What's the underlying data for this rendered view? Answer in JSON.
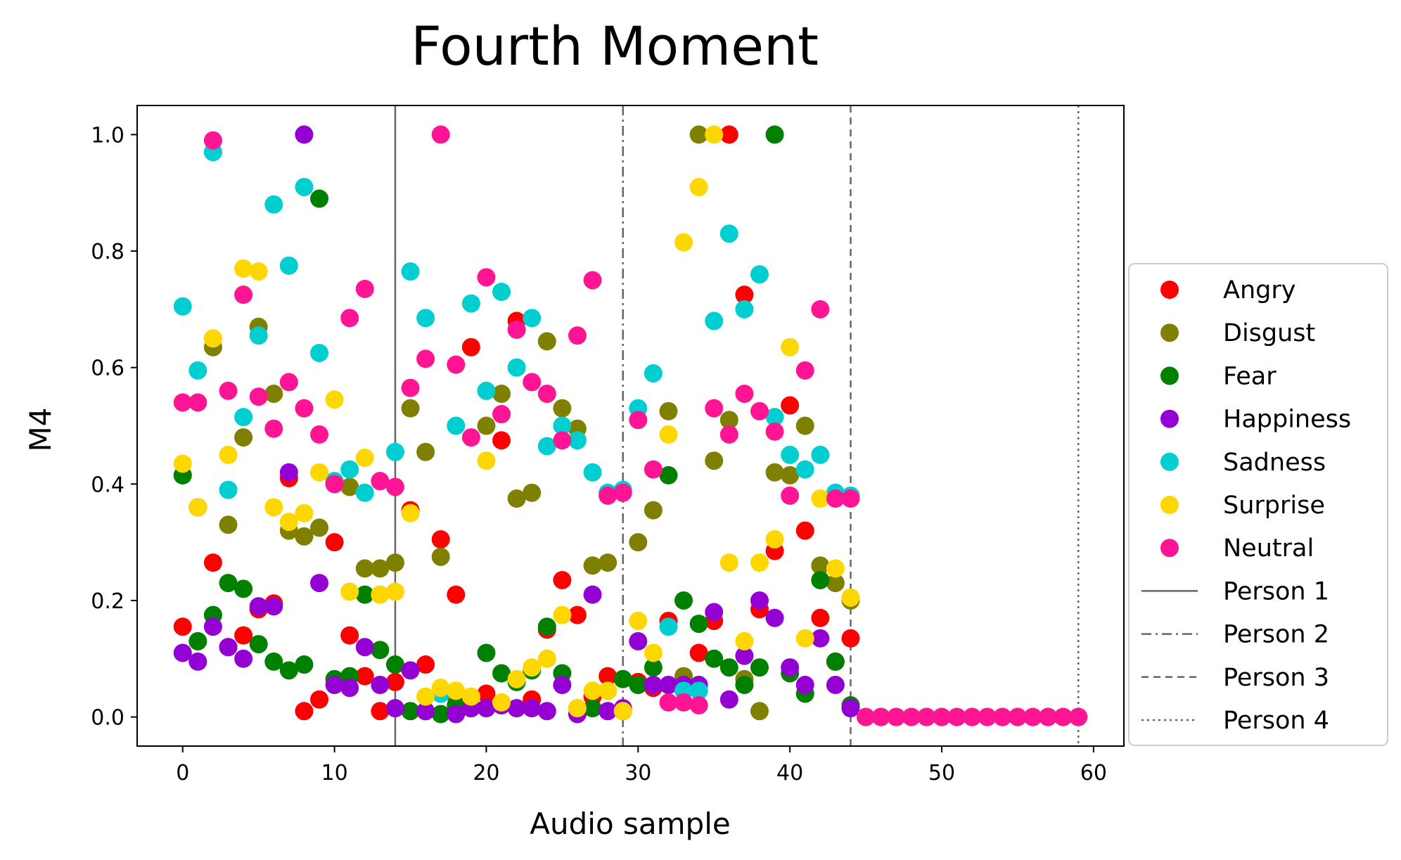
{
  "chart_data": {
    "type": "scatter",
    "title": "Fourth Moment",
    "xlabel": "Audio sample",
    "ylabel": "M4",
    "xlim": [
      -3,
      62
    ],
    "ylim": [
      -0.05,
      1.05
    ],
    "xticks": [
      "0",
      "10",
      "20",
      "30",
      "40",
      "50",
      "60"
    ],
    "yticks": [
      "0.0",
      "0.2",
      "0.4",
      "0.6",
      "0.8",
      "1.0"
    ],
    "grid": false,
    "legend_position": "center-right outside",
    "series": [
      {
        "name": "Angry",
        "color": "#ff0000",
        "x": [
          0,
          1,
          2,
          3,
          4,
          5,
          6,
          7,
          8,
          9,
          10,
          11,
          12,
          13,
          14,
          15,
          16,
          17,
          18,
          19,
          20,
          21,
          22,
          23,
          24,
          25,
          26,
          27,
          28,
          29,
          30,
          31,
          32,
          33,
          34,
          35,
          36,
          37,
          38,
          39,
          40,
          41,
          42,
          43,
          44,
          45,
          46,
          47,
          48,
          49,
          50,
          51,
          52,
          53,
          54,
          55,
          56,
          57,
          58,
          59
        ],
        "y": [
          0.155,
          0.36,
          0.265,
          0.12,
          0.14,
          0.185,
          0.195,
          0.41,
          0.01,
          0.03,
          0.3,
          0.14,
          0.07,
          0.01,
          0.06,
          0.355,
          0.09,
          0.305,
          0.21,
          0.635,
          0.04,
          0.475,
          0.68,
          0.03,
          0.15,
          0.235,
          0.175,
          0.035,
          0.07,
          0.01,
          0.06,
          0.05,
          0.165,
          0.06,
          0.11,
          0.165,
          1.0,
          0.725,
          0.185,
          0.285,
          0.535,
          0.32,
          0.17,
          0.095,
          0.135,
          0,
          0,
          0,
          0,
          0,
          0,
          0,
          0,
          0,
          0,
          0,
          0,
          0,
          0,
          0
        ]
      },
      {
        "name": "Disgust",
        "color": "#808000",
        "x": [
          0,
          1,
          2,
          3,
          4,
          5,
          6,
          7,
          8,
          9,
          10,
          11,
          12,
          13,
          14,
          15,
          16,
          17,
          18,
          19,
          20,
          21,
          22,
          23,
          24,
          25,
          26,
          27,
          28,
          29,
          30,
          31,
          32,
          33,
          34,
          35,
          36,
          37,
          38,
          39,
          40,
          41,
          42,
          43,
          44,
          45,
          46,
          47,
          48,
          49,
          50,
          51,
          52,
          53,
          54,
          55,
          56,
          57,
          58,
          59
        ],
        "y": [
          0.415,
          0.36,
          0.635,
          0.33,
          0.48,
          0.67,
          0.555,
          0.32,
          0.31,
          0.325,
          0.4,
          0.395,
          0.255,
          0.255,
          0.265,
          0.53,
          0.455,
          0.275,
          0.035,
          0.02,
          0.5,
          0.555,
          0.375,
          0.385,
          0.645,
          0.53,
          0.495,
          0.26,
          0.265,
          0.01,
          0.3,
          0.355,
          0.525,
          0.07,
          1.0,
          0.44,
          0.51,
          0.065,
          0.01,
          0.42,
          0.415,
          0.5,
          0.26,
          0.23,
          0.2,
          0,
          0,
          0,
          0,
          0,
          0,
          0,
          0,
          0,
          0,
          0,
          0,
          0,
          0,
          0
        ]
      },
      {
        "name": "Fear",
        "color": "#008000",
        "x": [
          0,
          1,
          2,
          3,
          4,
          5,
          6,
          7,
          8,
          9,
          10,
          11,
          12,
          13,
          14,
          15,
          16,
          17,
          18,
          19,
          20,
          21,
          22,
          23,
          24,
          25,
          26,
          27,
          28,
          29,
          30,
          31,
          32,
          33,
          34,
          35,
          36,
          37,
          38,
          39,
          40,
          41,
          42,
          43,
          44,
          45,
          46,
          47,
          48,
          49,
          50,
          51,
          52,
          53,
          54,
          55,
          56,
          57,
          58,
          59
        ],
        "y": [
          0.415,
          0.13,
          0.175,
          0.23,
          0.22,
          0.125,
          0.095,
          0.08,
          0.09,
          0.89,
          0.065,
          0.07,
          0.21,
          0.115,
          0.09,
          0.01,
          0.01,
          0.005,
          0.02,
          0.015,
          0.11,
          0.075,
          0.06,
          0.08,
          0.155,
          0.075,
          0.015,
          0.015,
          0.045,
          0.065,
          0.055,
          0.085,
          0.415,
          0.2,
          0.16,
          0.1,
          0.085,
          0.055,
          0.085,
          1.0,
          0.075,
          0.04,
          0.235,
          0.095,
          0.02,
          0,
          0,
          0,
          0,
          0,
          0,
          0,
          0,
          0,
          0,
          0,
          0,
          0,
          0,
          0
        ]
      },
      {
        "name": "Happiness",
        "color": "#9400d3",
        "x": [
          0,
          1,
          2,
          3,
          4,
          5,
          6,
          7,
          8,
          9,
          10,
          11,
          12,
          13,
          14,
          15,
          16,
          17,
          18,
          19,
          20,
          21,
          22,
          23,
          24,
          25,
          26,
          27,
          28,
          29,
          30,
          31,
          32,
          33,
          34,
          35,
          36,
          37,
          38,
          39,
          40,
          41,
          42,
          43,
          44,
          45,
          46,
          47,
          48,
          49,
          50,
          51,
          52,
          53,
          54,
          55,
          56,
          57,
          58,
          59
        ],
        "y": [
          0.11,
          0.095,
          0.155,
          0.12,
          0.1,
          0.19,
          0.19,
          0.42,
          1.0,
          0.23,
          0.055,
          0.05,
          0.12,
          0.055,
          0.015,
          0.08,
          0.01,
          0.04,
          0.005,
          0.015,
          0.015,
          0.02,
          0.015,
          0.015,
          0.01,
          0.055,
          0.005,
          0.21,
          0.01,
          0.015,
          0.13,
          0.055,
          0.055,
          0.055,
          0.055,
          0.18,
          0.03,
          0.105,
          0.2,
          0.17,
          0.085,
          0.055,
          0.135,
          0.055,
          0.015,
          0,
          0,
          0,
          0,
          0,
          0,
          0,
          0,
          0,
          0,
          0,
          0,
          0,
          0,
          0
        ]
      },
      {
        "name": "Sadness",
        "color": "#00ced1",
        "x": [
          0,
          1,
          2,
          3,
          4,
          5,
          6,
          7,
          8,
          9,
          10,
          11,
          12,
          13,
          14,
          15,
          16,
          17,
          18,
          19,
          20,
          21,
          22,
          23,
          24,
          25,
          26,
          27,
          28,
          29,
          30,
          31,
          32,
          33,
          34,
          35,
          36,
          37,
          38,
          39,
          40,
          41,
          42,
          43,
          44,
          45,
          46,
          47,
          48,
          49,
          50,
          51,
          52,
          53,
          54,
          55,
          56,
          57,
          58,
          59
        ],
        "y": [
          0.705,
          0.595,
          0.97,
          0.39,
          0.515,
          0.655,
          0.88,
          0.775,
          0.91,
          0.625,
          0.405,
          0.425,
          0.385,
          0.405,
          0.455,
          0.765,
          0.685,
          0.04,
          0.5,
          0.71,
          0.56,
          0.73,
          0.6,
          0.685,
          0.465,
          0.5,
          0.475,
          0.42,
          0.385,
          0.39,
          0.53,
          0.59,
          0.155,
          0.045,
          0.045,
          0.68,
          0.83,
          0.7,
          0.76,
          0.515,
          0.45,
          0.425,
          0.45,
          0.385,
          0.38,
          0,
          0,
          0,
          0,
          0,
          0,
          0,
          0,
          0,
          0,
          0,
          0,
          0,
          0,
          0
        ]
      },
      {
        "name": "Surprise",
        "color": "#ffd700",
        "x": [
          0,
          1,
          2,
          3,
          4,
          5,
          6,
          7,
          8,
          9,
          10,
          11,
          12,
          13,
          14,
          15,
          16,
          17,
          18,
          19,
          20,
          21,
          22,
          23,
          24,
          25,
          26,
          27,
          28,
          29,
          30,
          31,
          32,
          33,
          34,
          35,
          36,
          37,
          38,
          39,
          40,
          41,
          42,
          43,
          44,
          45,
          46,
          47,
          48,
          49,
          50,
          51,
          52,
          53,
          54,
          55,
          56,
          57,
          58,
          59
        ],
        "y": [
          0.435,
          0.36,
          0.65,
          0.45,
          0.77,
          0.765,
          0.36,
          0.335,
          0.35,
          0.42,
          0.545,
          0.215,
          0.445,
          0.21,
          0.215,
          0.35,
          0.035,
          0.05,
          0.045,
          0.035,
          0.44,
          0.025,
          0.065,
          0.085,
          0.1,
          0.175,
          0.015,
          0.045,
          0.045,
          0.01,
          0.165,
          0.11,
          0.485,
          0.815,
          0.91,
          1.0,
          0.265,
          0.13,
          0.265,
          0.305,
          0.635,
          0.135,
          0.375,
          0.255,
          0.205,
          0,
          0,
          0,
          0,
          0,
          0,
          0,
          0,
          0,
          0,
          0,
          0,
          0,
          0,
          0
        ]
      },
      {
        "name": "Neutral",
        "color": "#ff1493",
        "x": [
          0,
          1,
          2,
          3,
          4,
          5,
          6,
          7,
          8,
          9,
          10,
          11,
          12,
          13,
          14,
          15,
          16,
          17,
          18,
          19,
          20,
          21,
          22,
          23,
          24,
          25,
          26,
          27,
          28,
          29,
          30,
          31,
          32,
          33,
          34,
          35,
          36,
          37,
          38,
          39,
          40,
          41,
          42,
          43,
          44,
          45,
          46,
          47,
          48,
          49,
          50,
          51,
          52,
          53,
          54,
          55,
          56,
          57,
          58,
          59
        ],
        "y": [
          0.54,
          0.54,
          0.99,
          0.56,
          0.725,
          0.55,
          0.495,
          0.575,
          0.53,
          0.485,
          0.4,
          0.685,
          0.735,
          0.405,
          0.395,
          0.565,
          0.615,
          1.0,
          0.605,
          0.48,
          0.755,
          0.52,
          0.665,
          0.575,
          0.555,
          0.475,
          0.655,
          0.75,
          0.38,
          0.385,
          0.51,
          0.425,
          0.025,
          0.025,
          0.02,
          0.53,
          0.485,
          0.555,
          0.525,
          0.49,
          0.38,
          0.595,
          0.7,
          0.375,
          0.375,
          0,
          0,
          0,
          0,
          0,
          0,
          0,
          0,
          0,
          0,
          0,
          0,
          0,
          0,
          0
        ]
      }
    ],
    "vlines": [
      {
        "name": "Person 1",
        "x": 14,
        "style": "solid"
      },
      {
        "name": "Person 2",
        "x": 29,
        "style": "dashdot"
      },
      {
        "name": "Person 3",
        "x": 44,
        "style": "dashed"
      },
      {
        "name": "Person 4",
        "x": 59,
        "style": "dotted"
      }
    ],
    "line_color": "#666666"
  }
}
